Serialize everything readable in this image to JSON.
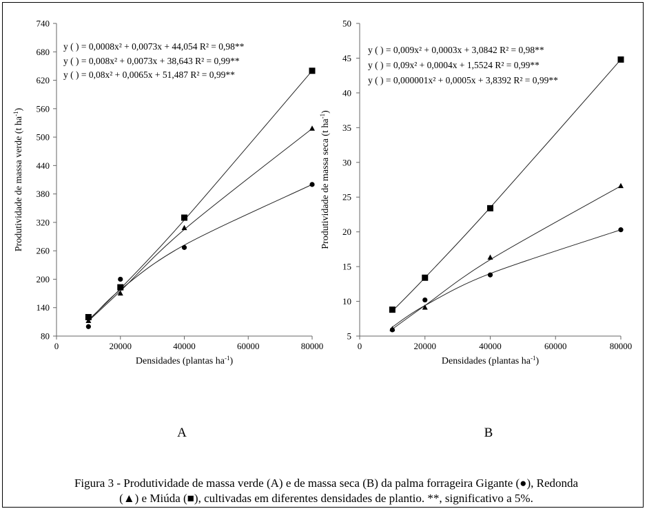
{
  "figure": {
    "caption_line1": "Figura 3 - Produtividade de massa verde (A) e de massa seca (B) da palma forrageira Gigante (●), Redonda",
    "caption_line2": "(▲) e Miúda (■), cultivadas em diferentes densidades de plantio. **, significativo a 5%."
  },
  "chart_data": [
    {
      "type": "scatter",
      "panel_label": "A",
      "xlabel": "Densidades (plantas ha",
      "xlabel_sup": "-1",
      "xlabel_end": ")",
      "ylabel": "Produtividade de massa verde (t ha",
      "ylabel_sup": "-1",
      "ylabel_end": ")",
      "xlim": [
        0,
        80000
      ],
      "ylim": [
        80,
        740
      ],
      "x_ticks": [
        0,
        20000,
        40000,
        60000,
        80000
      ],
      "y_ticks": [
        80,
        140,
        200,
        260,
        320,
        380,
        440,
        500,
        560,
        620,
        680,
        740
      ],
      "x": [
        10000,
        20000,
        40000,
        80000
      ],
      "series": [
        {
          "marker": "circle",
          "values": [
            100,
            200,
            267,
            400
          ],
          "trend": [
            111,
            178,
            272,
            400
          ]
        },
        {
          "marker": "triangle",
          "values": [
            112,
            170,
            308,
            518
          ],
          "trend": [
            112,
            175,
            305,
            518
          ]
        },
        {
          "marker": "square",
          "values": [
            120,
            183,
            330,
            640
          ],
          "trend": [
            114,
            180,
            325,
            640
          ]
        }
      ],
      "equations": [
        "y ( ) = 0,0008x² + 0,0073x + 44,054 R² = 0,98**",
        "y ( ) = 0,008x² + 0,0073x + 38,643 R² = 0,99**",
        "y ( ) = 0,08x² + 0,0065x + 51,487 R² = 0,99**"
      ],
      "grid": false
    },
    {
      "type": "scatter",
      "panel_label": "B",
      "xlabel": "Densidades (plantas ha",
      "xlabel_sup": "-1",
      "xlabel_end": ")",
      "ylabel": "Produtividade de massa seca (t ha",
      "ylabel_sup": "-1",
      "ylabel_end": ")",
      "xlim": [
        0,
        80000
      ],
      "ylim": [
        5,
        50
      ],
      "x_ticks": [
        0,
        20000,
        40000,
        60000,
        80000
      ],
      "y_ticks": [
        5,
        10,
        15,
        20,
        25,
        30,
        35,
        40,
        45,
        50
      ],
      "x": [
        10000,
        20000,
        40000,
        80000
      ],
      "series": [
        {
          "marker": "circle",
          "values": [
            5.9,
            10.2,
            13.8,
            20.3
          ],
          "trend": [
            6.3,
            9.4,
            14.0,
            20.3
          ]
        },
        {
          "marker": "triangle",
          "values": [
            6.0,
            9.1,
            16.3,
            26.6
          ],
          "trend": [
            6.0,
            9.4,
            16.0,
            26.6
          ]
        },
        {
          "marker": "square",
          "values": [
            8.8,
            13.4,
            23.4,
            44.8
          ],
          "trend": [
            8.6,
            13.4,
            23.5,
            44.8
          ]
        }
      ],
      "equations": [
        "y ( ) = 0,009x² + 0,0003x + 3,0842 R² = 0,98**",
        "y ( ) = 0,09x² + 0,0004x + 1,5524 R² = 0,99**",
        "y ( ) = 0,000001x² + 0,0005x + 3,8392 R² = 0,99**"
      ],
      "grid": false
    }
  ]
}
